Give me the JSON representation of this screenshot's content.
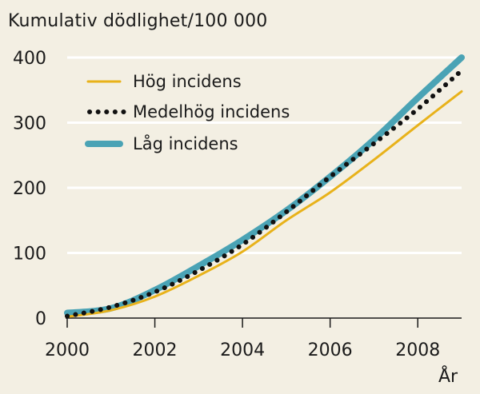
{
  "chart_data": {
    "type": "line",
    "title": "",
    "ylabel": "Kumulativ dödlighet/100 000",
    "xlabel": "År",
    "xlim": [
      2000,
      2009
    ],
    "ylim": [
      0,
      400
    ],
    "x_ticks": [
      2000,
      2002,
      2004,
      2006,
      2008
    ],
    "y_ticks": [
      0,
      100,
      200,
      300,
      400
    ],
    "grid": "horizontal",
    "legend_position": "top-left",
    "series": [
      {
        "name": "Hög incidens",
        "style": "solid",
        "color": "#e8b21a",
        "x": [
          2000,
          2001,
          2002,
          2003,
          2004,
          2005,
          2006,
          2007,
          2008,
          2009
        ],
        "y": [
          2,
          12,
          33,
          65,
          102,
          150,
          193,
          243,
          296,
          348
        ]
      },
      {
        "name": "Medelhög incidens",
        "style": "dotted",
        "color": "#111111",
        "x": [
          2000,
          2001,
          2002,
          2003,
          2004,
          2005,
          2006,
          2007,
          2008,
          2009
        ],
        "y": [
          3,
          17,
          40,
          73,
          113,
          163,
          217,
          268,
          321,
          380
        ]
      },
      {
        "name": "Låg incidens",
        "style": "thick",
        "color": "#4aa3b5",
        "x": [
          2000,
          2001,
          2002,
          2003,
          2004,
          2005,
          2006,
          2007,
          2008,
          2009
        ],
        "y": [
          8,
          15,
          43,
          80,
          120,
          165,
          217,
          274,
          338,
          400
        ]
      }
    ]
  }
}
